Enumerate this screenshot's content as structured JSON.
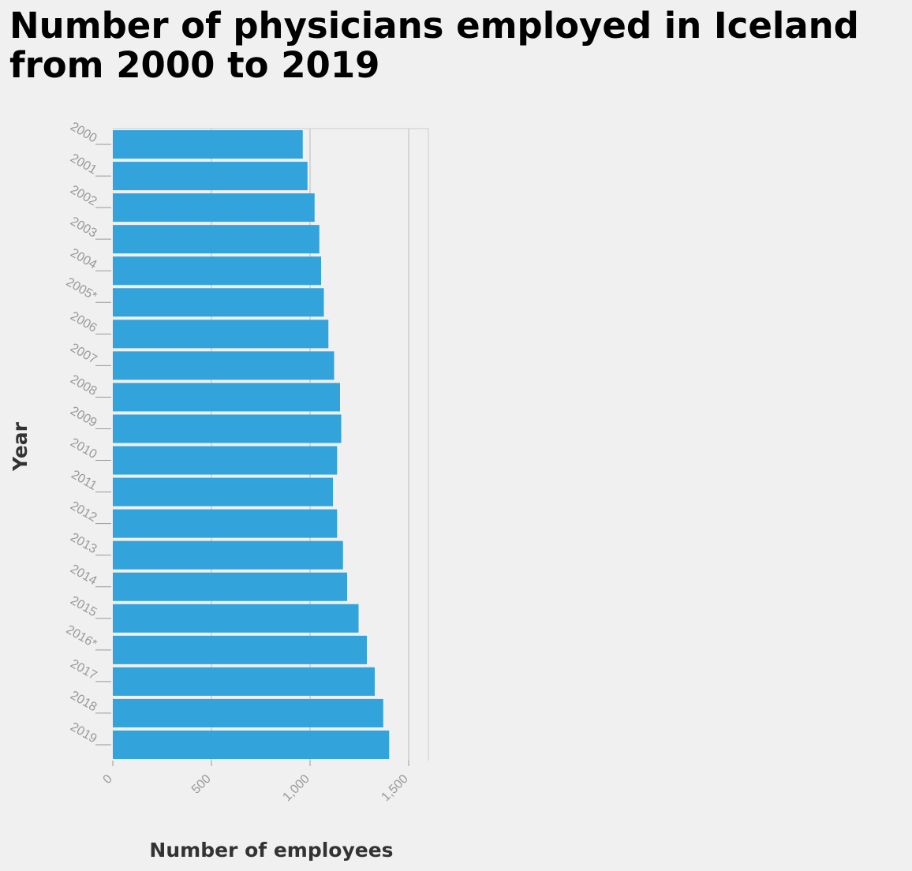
{
  "chart_data": {
    "type": "bar",
    "orientation": "horizontal",
    "title": "Number of physicians employed in Iceland from 2000 to 2019",
    "xlabel": "Number of employees",
    "ylabel": "Year",
    "categories": [
      "2000",
      "2001",
      "2002",
      "2003",
      "2004",
      "2005*",
      "2006",
      "2007",
      "2008",
      "2009",
      "2010",
      "2011",
      "2012",
      "2013",
      "2014",
      "2015",
      "2016*",
      "2017",
      "2018",
      "2019"
    ],
    "values": [
      963,
      987,
      1023,
      1047,
      1056,
      1070,
      1093,
      1122,
      1152,
      1158,
      1137,
      1116,
      1137,
      1167,
      1188,
      1246,
      1288,
      1328,
      1371,
      1401
    ],
    "xlim": [
      0,
      1600
    ],
    "xticks": [
      0,
      500,
      1000,
      1500
    ],
    "xtick_labels": [
      "0",
      "500",
      "1,000",
      "1,500"
    ],
    "grid": true,
    "bar_color": "#33a3dc",
    "grid_color": "#cccccc"
  }
}
